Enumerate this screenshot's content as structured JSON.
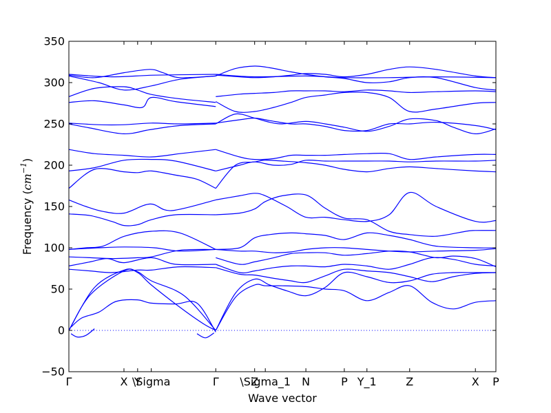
{
  "chart_data": {
    "type": "line",
    "title": "",
    "xlabel": "Wave vector",
    "ylabel": {
      "prefix": "Frequency (",
      "unit": "cm",
      "exponent": "−1",
      "suffix": ")"
    },
    "ylim": [
      -50,
      350
    ],
    "xlim": [
      0,
      1
    ],
    "yticks": [
      -50,
      0,
      50,
      100,
      150,
      200,
      250,
      300,
      350
    ],
    "xticks": [
      {
        "label": "Γ",
        "x": 0.0
      },
      {
        "label": "X",
        "x": 0.129
      },
      {
        "label": "Y",
        "x": 0.161
      },
      {
        "label": "\\Sigma",
        "x": 0.193
      },
      {
        "label": "Γ",
        "x": 0.344
      },
      {
        "label": "Z",
        "x": 0.435
      },
      {
        "label": "\\Sigma_1",
        "x": 0.46
      },
      {
        "label": "N",
        "x": 0.555
      },
      {
        "label": "P",
        "x": 0.645
      },
      {
        "label": "Y_1",
        "x": 0.698
      },
      {
        "label": "Z",
        "x": 0.798
      },
      {
        "label": "X",
        "x": 0.952
      },
      {
        "label": "P",
        "x": 1.0
      }
    ],
    "zero_line": {
      "y": 0,
      "style": "dotted"
    },
    "line_color": "#0000ff",
    "series": [
      {
        "x": [
          0,
          0.05,
          0.129,
          0.161,
          0.193,
          0.26,
          0.315,
          0.344
        ],
        "values": [
          0,
          43,
          72,
          70,
          55,
          28,
          8,
          0
        ]
      },
      {
        "x": [
          0,
          0.06,
          0.129,
          0.161,
          0.193,
          0.27,
          0.344
        ],
        "values": [
          0,
          52,
          73,
          71,
          60,
          42,
          0
        ]
      },
      {
        "x": [
          0.005,
          0.03,
          0.07,
          0.11,
          0.16,
          0.193,
          0.25,
          0.3,
          0.344
        ],
        "values": [
          4,
          15,
          22,
          35,
          37,
          33,
          32,
          33,
          -2
        ]
      },
      {
        "x": [
          0.005,
          0.02,
          0.04,
          0.06
        ],
        "values": [
          -4,
          -8,
          -6,
          2
        ]
      },
      {
        "x": [
          0.3,
          0.32,
          0.34
        ],
        "values": [
          -4,
          -9,
          -3
        ]
      },
      {
        "x": [
          0,
          0.05,
          0.1,
          0.161,
          0.193,
          0.26,
          0.344
        ],
        "values": [
          74,
          72,
          70,
          73,
          73,
          77,
          76
        ]
      },
      {
        "x": [
          0,
          0.05,
          0.09,
          0.129,
          0.193,
          0.25,
          0.344
        ],
        "values": [
          78,
          83,
          87,
          82,
          88,
          80,
          80
        ]
      },
      {
        "x": [
          0,
          0.05,
          0.1,
          0.161,
          0.193,
          0.26,
          0.344
        ],
        "values": [
          89,
          88,
          87,
          88,
          89,
          97,
          98
        ]
      },
      {
        "x": [
          0,
          0.07,
          0.13,
          0.2,
          0.26,
          0.344
        ],
        "values": [
          98,
          100,
          101,
          100,
          96,
          98
        ]
      },
      {
        "x": [
          0,
          0.04,
          0.08,
          0.13,
          0.193,
          0.26,
          0.344
        ],
        "values": [
          98,
          100,
          102,
          114,
          120,
          118,
          98
        ]
      },
      {
        "x": [
          0,
          0.05,
          0.1,
          0.129,
          0.161,
          0.193,
          0.25,
          0.344
        ],
        "values": [
          141,
          139,
          132,
          127,
          128,
          134,
          140,
          140
        ]
      },
      {
        "x": [
          0,
          0.04,
          0.08,
          0.129,
          0.19,
          0.24,
          0.344
        ],
        "values": [
          158,
          150,
          144,
          142,
          153,
          145,
          158
        ]
      },
      {
        "x": [
          0,
          0.06,
          0.129,
          0.161,
          0.193,
          0.25,
          0.3,
          0.344
        ],
        "values": [
          172,
          195,
          192,
          191,
          193,
          188,
          183,
          172
        ]
      },
      {
        "x": [
          0,
          0.06,
          0.129,
          0.193,
          0.25,
          0.344
        ],
        "values": [
          193,
          197,
          206,
          207,
          205,
          193
        ]
      },
      {
        "x": [
          0,
          0.06,
          0.129,
          0.193,
          0.26,
          0.344
        ],
        "values": [
          219,
          214,
          212,
          210,
          214,
          219
        ]
      },
      {
        "x": [
          0,
          0.05,
          0.129,
          0.19,
          0.26,
          0.344
        ],
        "values": [
          250,
          245,
          238,
          243,
          248,
          250
        ]
      },
      {
        "x": [
          0,
          0.07,
          0.129,
          0.193,
          0.26,
          0.344
        ],
        "values": [
          251,
          249,
          249,
          251,
          250,
          251
        ]
      },
      {
        "x": [
          0,
          0.06,
          0.129,
          0.172,
          0.193,
          0.25,
          0.344
        ],
        "values": [
          276,
          278,
          273,
          270,
          282,
          277,
          271
        ]
      },
      {
        "x": [
          0,
          0.06,
          0.129,
          0.161,
          0.19,
          0.25,
          0.344
        ],
        "values": [
          283,
          293,
          295,
          291,
          286,
          281,
          276
        ]
      },
      {
        "x": [
          0,
          0.07,
          0.129,
          0.193,
          0.26,
          0.344
        ],
        "values": [
          308,
          300,
          291,
          296,
          304,
          308
        ]
      },
      {
        "x": [
          0,
          0.06,
          0.129,
          0.19,
          0.22,
          0.26,
          0.344
        ],
        "values": [
          309,
          306,
          312,
          316,
          312,
          306,
          308
        ]
      },
      {
        "x": [
          0,
          0.1,
          0.2,
          0.344
        ],
        "values": [
          310,
          307,
          309,
          310
        ]
      },
      {
        "x": [
          0.344,
          0.39,
          0.435,
          0.46,
          0.5,
          0.555,
          0.6,
          0.645,
          0.698,
          0.75,
          0.798,
          0.85,
          0.9,
          0.952,
          1.0
        ],
        "values": [
          0,
          40,
          55,
          54,
          54,
          53,
          50,
          48,
          36,
          46,
          54,
          34,
          26,
          34,
          36
        ]
      },
      {
        "x": [
          0.344,
          0.39,
          0.435,
          0.47,
          0.51,
          0.555,
          0.6,
          0.645,
          0.698,
          0.75,
          0.798,
          0.85,
          0.9,
          0.952,
          1.0
        ],
        "values": [
          0,
          45,
          62,
          55,
          48,
          42,
          52,
          70,
          65,
          58,
          60,
          68,
          70,
          70,
          70
        ]
      },
      {
        "x": [
          0.344,
          0.4,
          0.435,
          0.48,
          0.52,
          0.555,
          0.6,
          0.645,
          0.698,
          0.75,
          0.798,
          0.85,
          0.9,
          0.952,
          1.0
        ],
        "values": [
          76,
          68,
          67,
          63,
          60,
          58,
          66,
          74,
          72,
          70,
          65,
          59,
          65,
          69,
          70
        ]
      },
      {
        "x": [
          0.344,
          0.4,
          0.435,
          0.48,
          0.52,
          0.555,
          0.6,
          0.645,
          0.698,
          0.75,
          0.798,
          0.85,
          0.9,
          0.952,
          1.0
        ],
        "values": [
          80,
          70,
          72,
          76,
          78,
          78,
          77,
          80,
          78,
          74,
          80,
          88,
          86,
          80,
          78
        ]
      },
      {
        "x": [
          0.344,
          0.4,
          0.435,
          0.48,
          0.52,
          0.555,
          0.6,
          0.645,
          0.698,
          0.75,
          0.798,
          0.86,
          0.9,
          0.952,
          1.0
        ],
        "values": [
          88,
          80,
          83,
          88,
          93,
          94,
          94,
          91,
          93,
          96,
          95,
          88,
          90,
          87,
          77
        ]
      },
      {
        "x": [
          0.344,
          0.4,
          0.435,
          0.48,
          0.52,
          0.555,
          0.6,
          0.645,
          0.698,
          0.75,
          0.798,
          0.86,
          0.952,
          1.0
        ],
        "values": [
          98,
          96,
          96,
          94,
          95,
          98,
          100,
          100,
          98,
          96,
          95,
          96,
          97,
          99
        ]
      },
      {
        "x": [
          0.344,
          0.4,
          0.435,
          0.47,
          0.52,
          0.555,
          0.6,
          0.645,
          0.698,
          0.75,
          0.798,
          0.86,
          0.952,
          1.0
        ],
        "values": [
          98,
          100,
          112,
          116,
          118,
          117,
          115,
          110,
          118,
          115,
          110,
          102,
          100,
          100
        ]
      },
      {
        "x": [
          0.344,
          0.4,
          0.435,
          0.46,
          0.5,
          0.555,
          0.6,
          0.645,
          0.698,
          0.75,
          0.798,
          0.86,
          0.93,
          0.952,
          1.0
        ],
        "values": [
          140,
          142,
          147,
          156,
          163,
          164,
          148,
          136,
          134,
          120,
          116,
          114,
          120,
          121,
          121
        ]
      },
      {
        "x": [
          0.344,
          0.4,
          0.435,
          0.46,
          0.51,
          0.555,
          0.6,
          0.645,
          0.7,
          0.75,
          0.798,
          0.86,
          0.952,
          1.0
        ],
        "values": [
          158,
          163,
          166,
          163,
          150,
          137,
          137,
          134,
          132,
          140,
          167,
          150,
          132,
          133
        ]
      },
      {
        "x": [
          0.344,
          0.39,
          0.435,
          0.46,
          0.5,
          0.555,
          0.6,
          0.645,
          0.698,
          0.75,
          0.798,
          0.86,
          0.952,
          1.0
        ],
        "values": [
          172,
          200,
          204,
          206,
          205,
          203,
          200,
          195,
          192,
          196,
          198,
          196,
          193,
          192
        ]
      },
      {
        "x": [
          0.344,
          0.4,
          0.435,
          0.48,
          0.52,
          0.555,
          0.6,
          0.645,
          0.698,
          0.75,
          0.798,
          0.86,
          0.952,
          1.0
        ],
        "values": [
          193,
          200,
          204,
          200,
          201,
          206,
          205,
          205,
          205,
          205,
          204,
          205,
          205,
          206
        ]
      },
      {
        "x": [
          0.344,
          0.4,
          0.435,
          0.48,
          0.52,
          0.555,
          0.6,
          0.645,
          0.698,
          0.75,
          0.798,
          0.86,
          0.952,
          1.0
        ],
        "values": [
          219,
          210,
          207,
          208,
          212,
          212,
          212,
          213,
          214,
          214,
          207,
          210,
          213,
          213
        ]
      },
      {
        "x": [
          0.344,
          0.39,
          0.435,
          0.47,
          0.5,
          0.555,
          0.6,
          0.645,
          0.698,
          0.75,
          0.798,
          0.86,
          0.9,
          0.952,
          1.0
        ],
        "values": [
          250,
          262,
          257,
          252,
          250,
          253,
          250,
          246,
          241,
          247,
          256,
          254,
          246,
          238,
          244
        ]
      },
      {
        "x": [
          0.344,
          0.4,
          0.435,
          0.47,
          0.52,
          0.555,
          0.6,
          0.645,
          0.698,
          0.75,
          0.798,
          0.86,
          0.952,
          1.0
        ],
        "values": [
          251,
          255,
          257,
          254,
          250,
          250,
          247,
          242,
          242,
          250,
          250,
          252,
          248,
          243
        ]
      },
      {
        "x": [
          0.344,
          0.39,
          0.435,
          0.48,
          0.52,
          0.555,
          0.6,
          0.645,
          0.698,
          0.75,
          0.798,
          0.86,
          0.952,
          1.0
        ],
        "values": [
          277,
          265,
          265,
          270,
          276,
          282,
          285,
          288,
          288,
          282,
          265,
          268,
          275,
          276
        ]
      },
      {
        "x": [
          0.344,
          0.4,
          0.435,
          0.48,
          0.52,
          0.555,
          0.6,
          0.645,
          0.698,
          0.75,
          0.798,
          0.86,
          0.952,
          1.0
        ],
        "values": [
          283,
          286,
          287,
          288,
          290,
          290,
          290,
          289,
          291,
          290,
          288,
          289,
          290,
          289
        ]
      },
      {
        "x": [
          0.344,
          0.39,
          0.435,
          0.47,
          0.52,
          0.555,
          0.6,
          0.645,
          0.698,
          0.75,
          0.798,
          0.86,
          0.952,
          1.0
        ],
        "values": [
          308,
          317,
          320,
          318,
          313,
          310,
          307,
          305,
          300,
          301,
          306,
          306,
          294,
          291
        ]
      },
      {
        "x": [
          0.344,
          0.4,
          0.435,
          0.48,
          0.52,
          0.555,
          0.6,
          0.645,
          0.698,
          0.75,
          0.798,
          0.86,
          0.952,
          1.0
        ],
        "values": [
          309,
          307,
          306,
          307,
          309,
          311,
          310,
          307,
          310,
          316,
          319,
          316,
          308,
          306
        ]
      },
      {
        "x": [
          0.344,
          0.435,
          0.555,
          0.645,
          0.75,
          0.86,
          1.0
        ],
        "values": [
          310,
          307,
          308,
          306,
          306,
          307,
          306
        ]
      }
    ]
  }
}
